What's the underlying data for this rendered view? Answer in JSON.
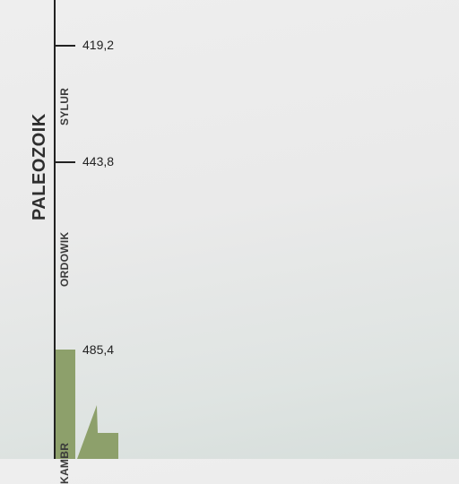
{
  "era": {
    "label": "PALEOZOIK"
  },
  "periods": [
    {
      "label": "SYLUR"
    },
    {
      "label": "ORDOWIK"
    },
    {
      "label": "KAMBR"
    }
  ],
  "boundaries": [
    {
      "value": "419,2"
    },
    {
      "value": "443,8"
    },
    {
      "value": "485,4"
    }
  ],
  "colors": {
    "cambrian_green": "#8da06b",
    "axis": "#222222"
  }
}
